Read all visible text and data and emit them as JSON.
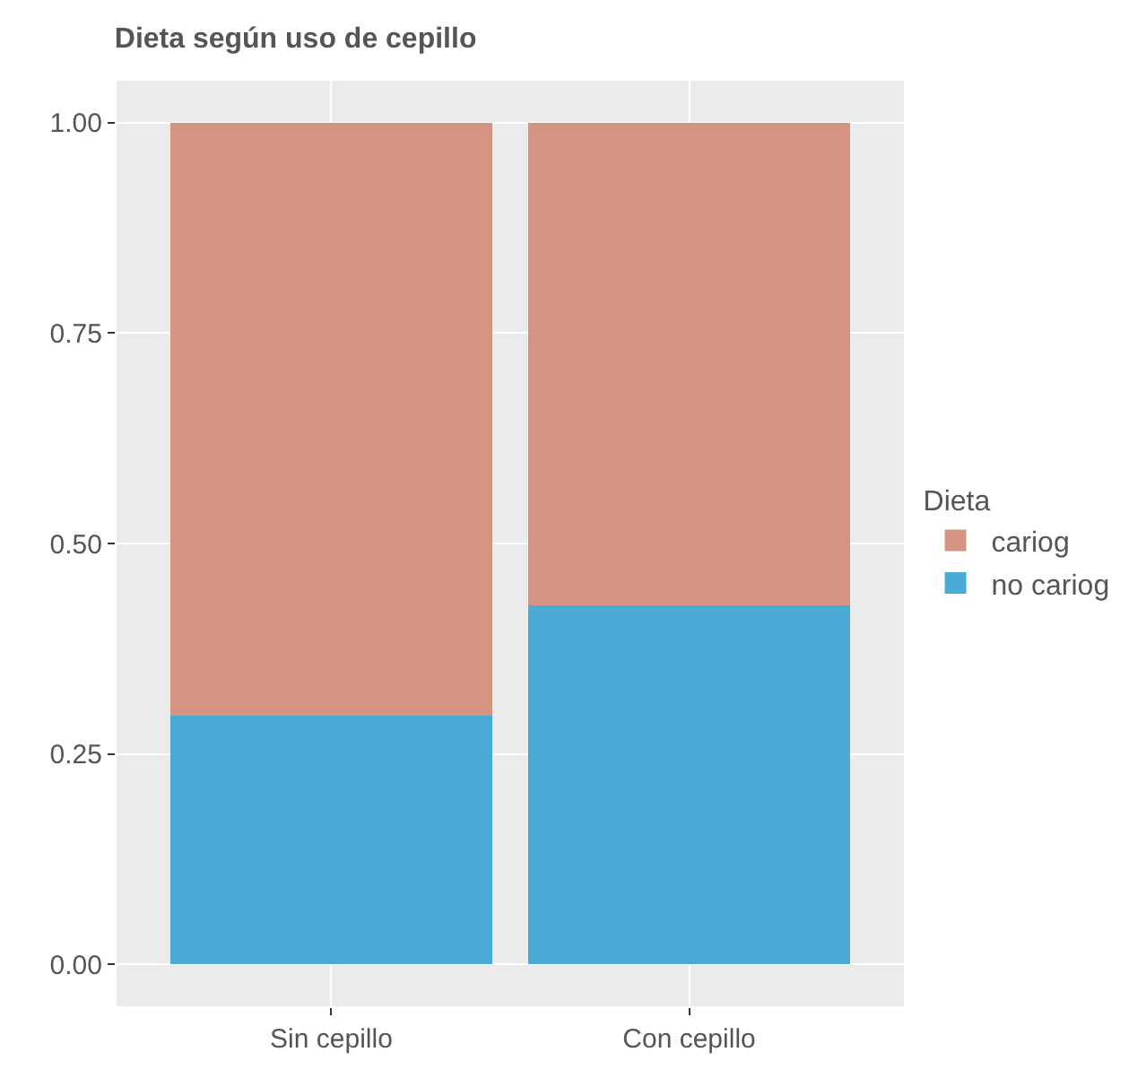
{
  "chart_data": {
    "type": "bar",
    "title": "Dieta según uso de cepillo",
    "legend_title": "Dieta",
    "categories": [
      "Sin cepillo",
      "Con cepillo"
    ],
    "stacked": true,
    "series": [
      {
        "name": "no cariog",
        "color": "#4aaad6",
        "values": [
          0.295,
          0.426
        ]
      },
      {
        "name": "cariog",
        "color": "#d49482",
        "values": [
          0.705,
          0.574
        ]
      }
    ],
    "ylim": [
      -0.05,
      1.05
    ],
    "yticks": [
      {
        "value": 0,
        "label": "0.00"
      },
      {
        "value": 0.25,
        "label": "0.25"
      },
      {
        "value": 0.5,
        "label": "0.50"
      },
      {
        "value": 0.75,
        "label": "0.75"
      },
      {
        "value": 1,
        "label": "1.00"
      }
    ],
    "grid": true,
    "legend": "right"
  }
}
